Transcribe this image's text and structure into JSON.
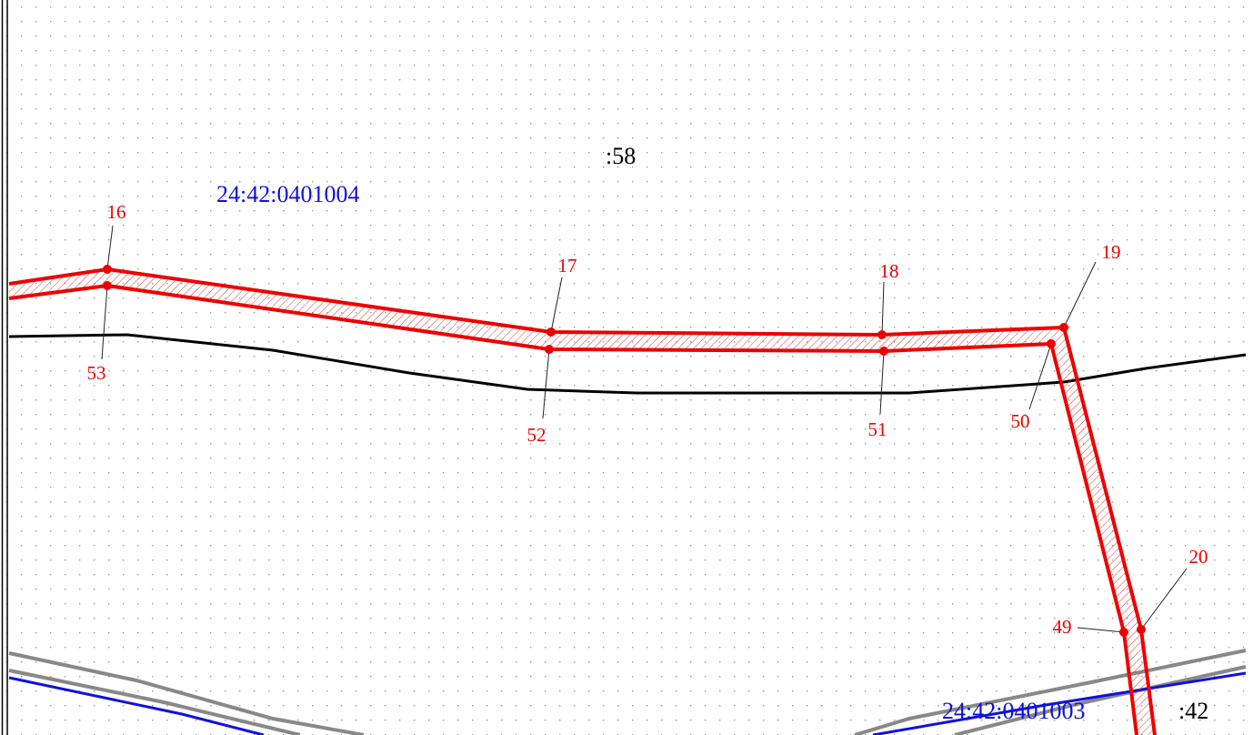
{
  "quarters": [
    "24:42:0401004",
    "24:42:0401003"
  ],
  "parcels": [
    ":58",
    ":42"
  ],
  "points": [
    "16",
    "17",
    "18",
    "19",
    "20",
    "49",
    "50",
    "51",
    "52",
    "53"
  ]
}
